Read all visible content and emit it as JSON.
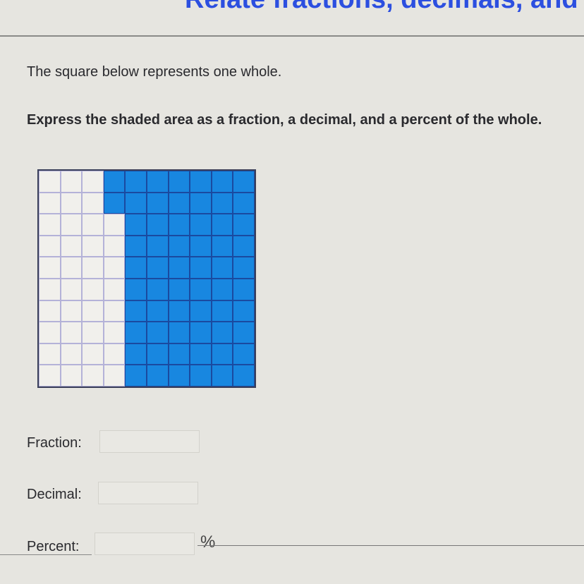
{
  "header": {
    "title": "Relate fractions, decimals, and p"
  },
  "question": {
    "line1": "The square below represents one whole.",
    "line2": "Express the shaded area as a fraction, a decimal, and a percent of the whole."
  },
  "grid": {
    "rows_count": 10,
    "cols_count": 10,
    "shaded_count": 62,
    "rows": [
      "0001111111",
      "0001111111",
      "0000111111",
      "0000111111",
      "0000111111",
      "0000111111",
      "0000111111",
      "0000111111",
      "0000111111",
      "0000111111"
    ],
    "shaded_color": "#1887e0"
  },
  "answers": {
    "fraction_label": "Fraction:",
    "fraction_value": "",
    "decimal_label": "Decimal:",
    "decimal_value": "",
    "percent_label": "Percent:",
    "percent_value": "",
    "percent_suffix": "%"
  }
}
